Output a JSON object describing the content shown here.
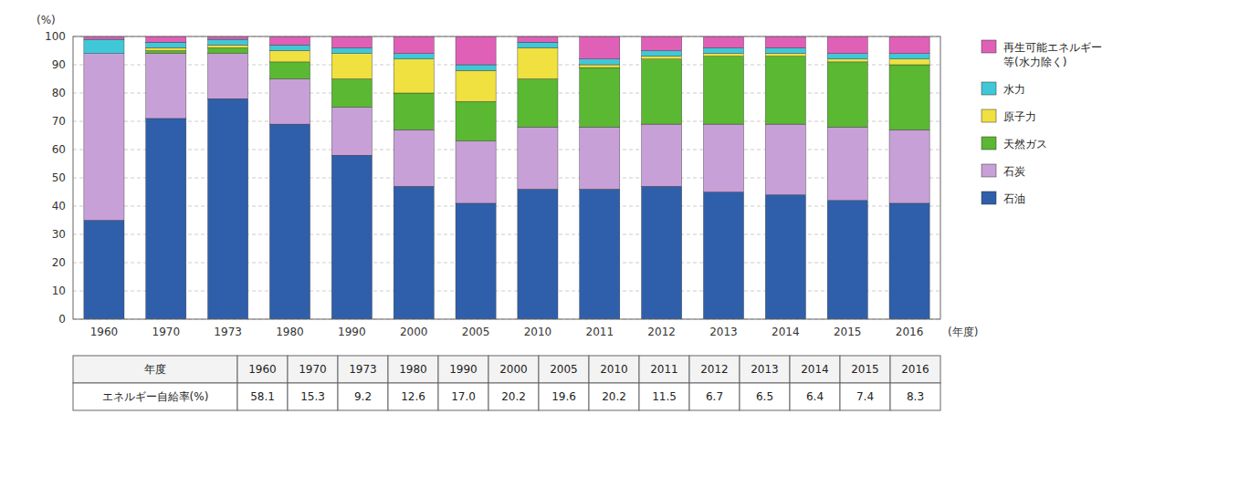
{
  "chart_data": {
    "type": "bar",
    "stacked": true,
    "categories": [
      "1960",
      "1970",
      "1973",
      "1980",
      "1990",
      "2000",
      "2005",
      "2010",
      "2011",
      "2012",
      "2013",
      "2014",
      "2015",
      "2016"
    ],
    "series": [
      {
        "name": "石油",
        "color": "#2f5faa",
        "values": [
          35,
          71,
          78,
          69,
          58,
          47,
          41,
          46,
          46,
          47,
          45,
          44,
          42,
          41
        ]
      },
      {
        "name": "石炭",
        "color": "#c8a0d8",
        "values": [
          59,
          23,
          16,
          16,
          17,
          20,
          22,
          22,
          22,
          22,
          24,
          25,
          26,
          26
        ]
      },
      {
        "name": "天然ガス",
        "color": "#5ab832",
        "values": [
          0,
          1,
          2,
          6,
          10,
          13,
          14,
          17,
          21,
          23,
          24,
          24,
          23,
          23
        ]
      },
      {
        "name": "原子力",
        "color": "#f0e040",
        "values": [
          0,
          1,
          1,
          4,
          9,
          12,
          11,
          11,
          1,
          1,
          1,
          1,
          1,
          2
        ]
      },
      {
        "name": "水力",
        "color": "#40c8d8",
        "values": [
          5,
          2,
          2,
          2,
          2,
          2,
          2,
          2,
          2,
          2,
          2,
          2,
          2,
          2
        ]
      },
      {
        "name": "再生可能エネルギー\n等(水力除く)",
        "color": "#e060b8",
        "values": [
          1,
          2,
          1,
          3,
          4,
          6,
          10,
          2,
          8,
          5,
          4,
          4,
          6,
          6
        ]
      }
    ],
    "ylim": [
      0,
      100
    ],
    "yticks": [
      0,
      10,
      20,
      30,
      40,
      50,
      60,
      70,
      80,
      90,
      100
    ],
    "grid": true,
    "legend": "right",
    "ylabel": "(%)",
    "xlabel": "(年度)",
    "table": {
      "header_label": "年度",
      "row_label": "エネルギー自給率(%)",
      "values": [
        58.1,
        15.3,
        9.2,
        12.6,
        17.0,
        20.2,
        19.6,
        20.2,
        11.5,
        6.7,
        6.5,
        6.4,
        7.4,
        8.3
      ],
      "value_labels": [
        "58.1",
        "15.3",
        "9.2",
        "12.6",
        "17.0",
        "20.2",
        "19.6",
        "20.2",
        "11.5",
        "6.7",
        "6.5",
        "6.4",
        "7.4",
        "8.3"
      ]
    }
  }
}
